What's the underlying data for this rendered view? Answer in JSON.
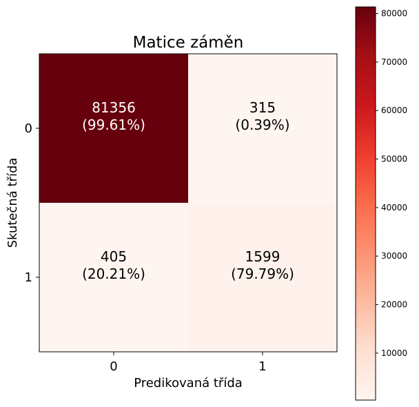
{
  "chart_data": {
    "type": "heatmap",
    "title": "Matice záměn",
    "xlabel": "Predikovaná třída",
    "ylabel": "Skutečná třída",
    "x_categories": [
      "0",
      "1"
    ],
    "y_categories": [
      "0",
      "1"
    ],
    "values": [
      [
        81356,
        315
      ],
      [
        405,
        1599
      ]
    ],
    "cell_labels": [
      [
        {
          "count": "81356",
          "pct": "(99.61%)"
        },
        {
          "count": "315",
          "pct": "(0.39%)"
        }
      ],
      [
        {
          "count": "405",
          "pct": "(20.21%)"
        },
        {
          "count": "1599",
          "pct": "(79.79%)"
        }
      ]
    ],
    "colormap": "Reds",
    "colorbar": {
      "vmin": 315,
      "vmax": 81356,
      "ticks": [
        10000,
        20000,
        30000,
        40000,
        50000,
        60000,
        70000,
        80000
      ],
      "tick_labels": [
        "10000",
        "20000",
        "30000",
        "40000",
        "50000",
        "60000",
        "70000",
        "80000"
      ]
    },
    "colors": {
      "reds_stops": [
        "#fff5f0",
        "#fee0d2",
        "#fcbba1",
        "#fc9272",
        "#fb6a4a",
        "#ef3b2c",
        "#cb181d",
        "#a50f15",
        "#67000d"
      ],
      "dark_text": "#ffffff",
      "light_text": "#000000"
    },
    "grid": false,
    "legend": "colorbar-right"
  }
}
